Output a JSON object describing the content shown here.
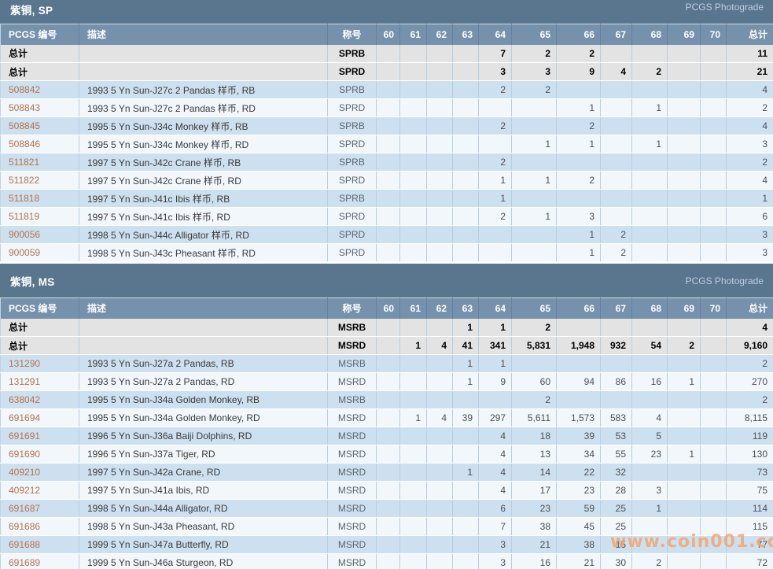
{
  "watermark": "www.coin001.com",
  "colors": {
    "section_bar": "#5a758e",
    "column_header_bar": "#7591ab",
    "total_row_bg": "#e3e3e3",
    "row_alt_blue": "#cde0ef",
    "row_alt_white": "#f2f7fb",
    "pcgs_number_link": "#b5724c",
    "photograde_link": "#b9cfe2",
    "watermark": "#f4a469"
  },
  "sections": [
    {
      "title": "紫铜, SP",
      "photograde_label": "PCGS Photograde",
      "columns": [
        "PCGS 编号",
        "描述",
        "称号",
        "60",
        "61",
        "62",
        "63",
        "64",
        "65",
        "66",
        "67",
        "68",
        "69",
        "70",
        "总计"
      ],
      "total_rows": [
        {
          "label": "总计",
          "designation": "SPRB",
          "grades": [
            "",
            "",
            "",
            "",
            "7",
            "2",
            "2",
            "",
            "",
            "",
            "",
            "11"
          ]
        },
        {
          "label": "总计",
          "designation": "SPRD",
          "grades": [
            "",
            "",
            "",
            "",
            "3",
            "3",
            "9",
            "4",
            "2",
            "",
            "",
            "21"
          ]
        }
      ],
      "rows": [
        {
          "number": "508842",
          "description": "1993 5 Yn Sun-J27c 2 Pandas 样币, RB",
          "designation": "SPRB",
          "grades": [
            "",
            "",
            "",
            "",
            "2",
            "2",
            "",
            "",
            "",
            "",
            "",
            "4"
          ]
        },
        {
          "number": "508843",
          "description": "1993 5 Yn Sun-J27c 2 Pandas 样币, RD",
          "designation": "SPRD",
          "grades": [
            "",
            "",
            "",
            "",
            "",
            "",
            "1",
            "",
            "1",
            "",
            "",
            "2"
          ]
        },
        {
          "number": "508845",
          "description": "1995 5 Yn Sun-J34c Monkey 样币, RB",
          "designation": "SPRB",
          "grades": [
            "",
            "",
            "",
            "",
            "2",
            "",
            "2",
            "",
            "",
            "",
            "",
            "4"
          ]
        },
        {
          "number": "508846",
          "description": "1995 5 Yn Sun-J34c Monkey 样币, RD",
          "designation": "SPRD",
          "grades": [
            "",
            "",
            "",
            "",
            "",
            "1",
            "1",
            "",
            "1",
            "",
            "",
            "3"
          ]
        },
        {
          "number": "511821",
          "description": "1997 5 Yn Sun-J42c Crane 样币, RB",
          "designation": "SPRB",
          "grades": [
            "",
            "",
            "",
            "",
            "2",
            "",
            "",
            "",
            "",
            "",
            "",
            "2"
          ]
        },
        {
          "number": "511822",
          "description": "1997 5 Yn Sun-J42c Crane 样币, RD",
          "designation": "SPRD",
          "grades": [
            "",
            "",
            "",
            "",
            "1",
            "1",
            "2",
            "",
            "",
            "",
            "",
            "4"
          ]
        },
        {
          "number": "511818",
          "description": "1997 5 Yn Sun-J41c Ibis 样币, RB",
          "designation": "SPRB",
          "grades": [
            "",
            "",
            "",
            "",
            "1",
            "",
            "",
            "",
            "",
            "",
            "",
            "1"
          ]
        },
        {
          "number": "511819",
          "description": "1997 5 Yn Sun-J41c Ibis 样币, RD",
          "designation": "SPRD",
          "grades": [
            "",
            "",
            "",
            "",
            "2",
            "1",
            "3",
            "",
            "",
            "",
            "",
            "6"
          ]
        },
        {
          "number": "900056",
          "description": "1998 5 Yn Sun-J44c Alligator 样币, RD",
          "designation": "SPRD",
          "grades": [
            "",
            "",
            "",
            "",
            "",
            "",
            "1",
            "2",
            "",
            "",
            "",
            "3"
          ]
        },
        {
          "number": "900059",
          "description": "1998 5 Yn Sun-J43c Pheasant 样币, RD",
          "designation": "SPRD",
          "grades": [
            "",
            "",
            "",
            "",
            "",
            "",
            "1",
            "2",
            "",
            "",
            "",
            "3"
          ]
        }
      ]
    },
    {
      "title": "紫铜, MS",
      "photograde_label": "PCGS Photograde",
      "columns": [
        "PCGS 编号",
        "描述",
        "称号",
        "60",
        "61",
        "62",
        "63",
        "64",
        "65",
        "66",
        "67",
        "68",
        "69",
        "70",
        "总计"
      ],
      "total_rows": [
        {
          "label": "总计",
          "designation": "MSRB",
          "grades": [
            "",
            "",
            "",
            "1",
            "1",
            "2",
            "",
            "",
            "",
            "",
            "",
            "4"
          ]
        },
        {
          "label": "总计",
          "designation": "MSRD",
          "grades": [
            "",
            "1",
            "4",
            "41",
            "341",
            "5,831",
            "1,948",
            "932",
            "54",
            "2",
            "",
            "9,160"
          ]
        }
      ],
      "rows": [
        {
          "number": "131290",
          "description": "1993 5 Yn Sun-J27a 2 Pandas, RB",
          "designation": "MSRB",
          "grades": [
            "",
            "",
            "",
            "1",
            "1",
            "",
            "",
            "",
            "",
            "",
            "",
            "2"
          ]
        },
        {
          "number": "131291",
          "description": "1993 5 Yn Sun-J27a 2 Pandas, RD",
          "designation": "MSRD",
          "grades": [
            "",
            "",
            "",
            "1",
            "9",
            "60",
            "94",
            "86",
            "16",
            "1",
            "",
            "270"
          ]
        },
        {
          "number": "638042",
          "description": "1995 5 Yn Sun-J34a Golden Monkey, RB",
          "designation": "MSRB",
          "grades": [
            "",
            "",
            "",
            "",
            "",
            "2",
            "",
            "",
            "",
            "",
            "",
            "2"
          ]
        },
        {
          "number": "691694",
          "description": "1995 5 Yn Sun-J34a Golden Monkey, RD",
          "designation": "MSRD",
          "grades": [
            "",
            "1",
            "4",
            "39",
            "297",
            "5,611",
            "1,573",
            "583",
            "4",
            "",
            "",
            "8,115"
          ]
        },
        {
          "number": "691691",
          "description": "1996 5 Yn Sun-J36a Baiji Dolphins, RD",
          "designation": "MSRD",
          "grades": [
            "",
            "",
            "",
            "",
            "4",
            "18",
            "39",
            "53",
            "5",
            "",
            "",
            "119"
          ]
        },
        {
          "number": "691690",
          "description": "1996 5 Yn Sun-J37a Tiger, RD",
          "designation": "MSRD",
          "grades": [
            "",
            "",
            "",
            "",
            "4",
            "13",
            "34",
            "55",
            "23",
            "1",
            "",
            "130"
          ]
        },
        {
          "number": "409210",
          "description": "1997 5 Yn Sun-J42a Crane, RD",
          "designation": "MSRD",
          "grades": [
            "",
            "",
            "",
            "1",
            "4",
            "14",
            "22",
            "32",
            "",
            "",
            "",
            "73"
          ]
        },
        {
          "number": "409212",
          "description": "1997 5 Yn Sun-J41a Ibis, RD",
          "designation": "MSRD",
          "grades": [
            "",
            "",
            "",
            "",
            "4",
            "17",
            "23",
            "28",
            "3",
            "",
            "",
            "75"
          ]
        },
        {
          "number": "691687",
          "description": "1998 5 Yn Sun-J44a Alligator, RD",
          "designation": "MSRD",
          "grades": [
            "",
            "",
            "",
            "",
            "6",
            "23",
            "59",
            "25",
            "1",
            "",
            "",
            "114"
          ]
        },
        {
          "number": "691686",
          "description": "1998 5 Yn Sun-J43a Pheasant, RD",
          "designation": "MSRD",
          "grades": [
            "",
            "",
            "",
            "",
            "7",
            "38",
            "45",
            "25",
            "",
            "",
            "",
            "115"
          ]
        },
        {
          "number": "691688",
          "description": "1999 5 Yn Sun-J47a Butterfly, RD",
          "designation": "MSRD",
          "grades": [
            "",
            "",
            "",
            "",
            "3",
            "21",
            "38",
            "15",
            "",
            "",
            "",
            "77"
          ]
        },
        {
          "number": "691689",
          "description": "1999 5 Yn Sun-J46a Sturgeon, RD",
          "designation": "MSRD",
          "grades": [
            "",
            "",
            "",
            "",
            "3",
            "16",
            "21",
            "30",
            "2",
            "",
            "",
            "72"
          ]
        }
      ]
    }
  ]
}
